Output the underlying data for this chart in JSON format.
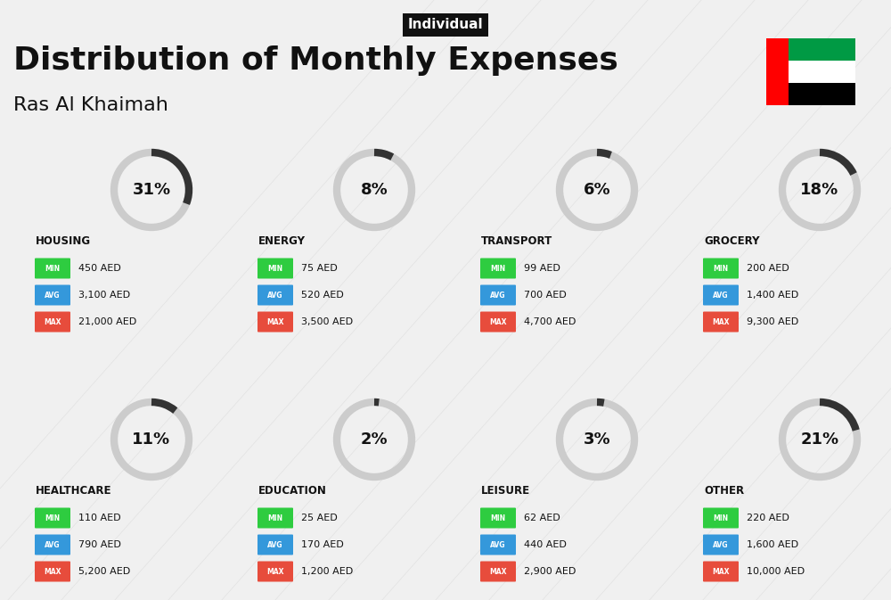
{
  "title": "Distribution of Monthly Expenses",
  "subtitle": "Ras Al Khaimah",
  "tag": "Individual",
  "bg_color": "#f0f0f0",
  "categories": [
    {
      "name": "HOUSING",
      "pct": 31,
      "min_val": "450 AED",
      "avg_val": "3,100 AED",
      "max_val": "21,000 AED",
      "col": 0,
      "row": 0
    },
    {
      "name": "ENERGY",
      "pct": 8,
      "min_val": "75 AED",
      "avg_val": "520 AED",
      "max_val": "3,500 AED",
      "col": 1,
      "row": 0
    },
    {
      "name": "TRANSPORT",
      "pct": 6,
      "min_val": "99 AED",
      "avg_val": "700 AED",
      "max_val": "4,700 AED",
      "col": 2,
      "row": 0
    },
    {
      "name": "GROCERY",
      "pct": 18,
      "min_val": "200 AED",
      "avg_val": "1,400 AED",
      "max_val": "9,300 AED",
      "col": 3,
      "row": 0
    },
    {
      "name": "HEALTHCARE",
      "pct": 11,
      "min_val": "110 AED",
      "avg_val": "790 AED",
      "max_val": "5,200 AED",
      "col": 0,
      "row": 1
    },
    {
      "name": "EDUCATION",
      "pct": 2,
      "min_val": "25 AED",
      "avg_val": "170 AED",
      "max_val": "1,200 AED",
      "col": 1,
      "row": 1
    },
    {
      "name": "LEISURE",
      "pct": 3,
      "min_val": "62 AED",
      "avg_val": "440 AED",
      "max_val": "2,900 AED",
      "col": 2,
      "row": 1
    },
    {
      "name": "OTHER",
      "pct": 21,
      "min_val": "220 AED",
      "avg_val": "1,600 AED",
      "max_val": "10,000 AED",
      "col": 3,
      "row": 1
    }
  ],
  "min_color": "#2ecc40",
  "avg_color": "#3498db",
  "max_color": "#e74c3c",
  "label_color": "#ffffff",
  "arc_color": "#333333",
  "arc_bg_color": "#cccccc",
  "text_color": "#111111",
  "tag_bg": "#111111",
  "tag_text": "#ffffff"
}
